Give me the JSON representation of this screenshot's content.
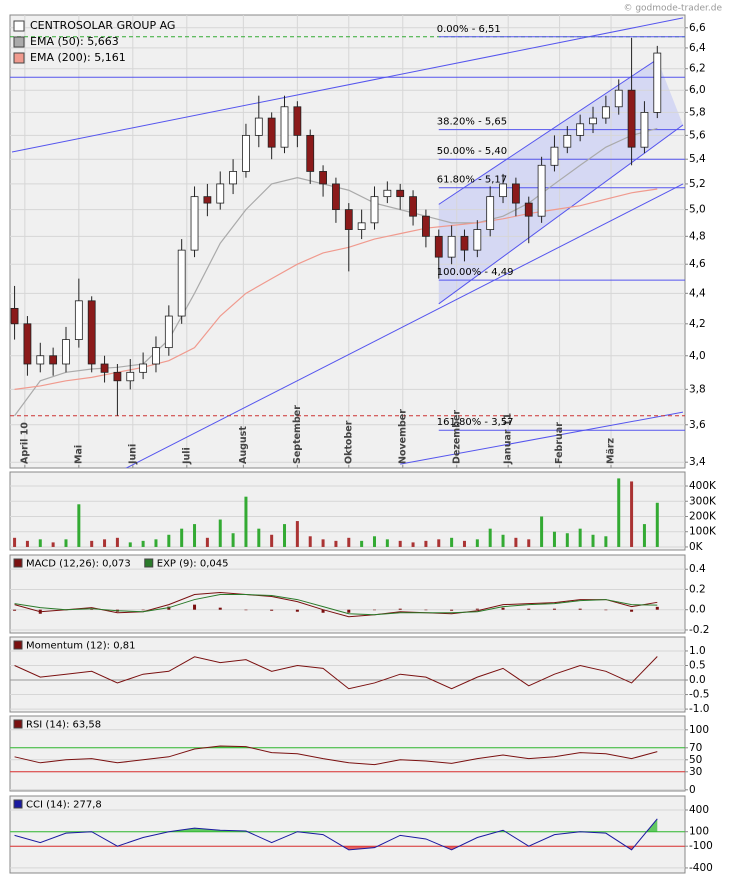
{
  "watermark": "© godmode-trader.de",
  "chart_data": [
    {
      "type": "candlestick",
      "title": "CENTROSOLAR GROUP AG",
      "title_color": "#ffffff",
      "log": true,
      "xlim": [
        -1,
        260
      ],
      "ylim": [
        3.37,
        6.73
      ],
      "yticks": [
        {
          "value": 6.6,
          "label": "6,6"
        },
        {
          "value": 6.4,
          "label": "6,4"
        },
        {
          "value": 6.2,
          "label": "6,2"
        },
        {
          "value": 6.0,
          "label": "6,0"
        },
        {
          "value": 5.8,
          "label": "5,8"
        },
        {
          "value": 5.6,
          "label": "5,6"
        },
        {
          "value": 5.4,
          "label": "5,4"
        },
        {
          "value": 5.2,
          "label": "5,2"
        },
        {
          "value": 5.0,
          "label": "5,0"
        },
        {
          "value": 4.8,
          "label": "4,8"
        },
        {
          "value": 4.6,
          "label": "4,6"
        },
        {
          "value": 4.4,
          "label": "4,4"
        },
        {
          "value": 4.2,
          "label": "4,2"
        },
        {
          "value": 4.0,
          "label": "4,0"
        },
        {
          "value": 3.8,
          "label": "3,8"
        },
        {
          "value": 3.6,
          "label": "3,6"
        },
        {
          "value": 3.4,
          "label": "3,4"
        }
      ],
      "xticks": [
        {
          "value": 4,
          "label": "April 10"
        },
        {
          "value": 25,
          "label": "Mai"
        },
        {
          "value": 46,
          "label": "Juni"
        },
        {
          "value": 67,
          "label": "Juli"
        },
        {
          "value": 89,
          "label": "August"
        },
        {
          "value": 110,
          "label": "September"
        },
        {
          "value": 130,
          "label": "Oktober"
        },
        {
          "value": 151,
          "label": "November"
        },
        {
          "value": 172,
          "label": "Dezember"
        },
        {
          "value": 192,
          "label": "Januar 11"
        },
        {
          "value": 212,
          "label": "Februar"
        },
        {
          "value": 232,
          "label": "März"
        }
      ],
      "x": [
        0,
        5,
        10,
        15,
        20,
        25,
        30,
        35,
        40,
        45,
        50,
        55,
        60,
        65,
        70,
        75,
        80,
        85,
        90,
        95,
        100,
        105,
        110,
        115,
        120,
        125,
        130,
        135,
        140,
        145,
        150,
        155,
        160,
        165,
        170,
        175,
        180,
        185,
        190,
        195,
        200,
        205,
        210,
        215,
        220,
        225,
        230,
        235,
        240,
        245,
        250
      ],
      "open": [
        4.3,
        4.2,
        3.95,
        4.0,
        3.95,
        4.1,
        4.35,
        3.95,
        3.9,
        3.85,
        3.9,
        3.95,
        4.05,
        4.25,
        4.7,
        5.1,
        5.05,
        5.2,
        5.3,
        5.6,
        5.75,
        5.5,
        5.85,
        5.6,
        5.3,
        5.2,
        5.0,
        4.85,
        4.9,
        5.1,
        5.15,
        5.1,
        4.95,
        4.8,
        4.65,
        4.8,
        4.7,
        4.85,
        5.1,
        5.2,
        5.05,
        4.95,
        5.35,
        5.5,
        5.6,
        5.7,
        5.75,
        5.85,
        6.0,
        5.5,
        5.8
      ],
      "high": [
        4.45,
        4.25,
        4.08,
        4.05,
        4.18,
        4.5,
        4.38,
        4.0,
        3.95,
        3.98,
        4.02,
        4.12,
        4.32,
        4.78,
        5.18,
        5.2,
        5.3,
        5.4,
        5.7,
        5.95,
        5.8,
        5.95,
        5.9,
        5.65,
        5.35,
        5.25,
        5.05,
        5.0,
        5.18,
        5.22,
        5.2,
        5.15,
        5.0,
        4.85,
        4.88,
        4.85,
        4.92,
        5.18,
        5.28,
        5.25,
        5.1,
        5.42,
        5.6,
        5.68,
        5.78,
        5.85,
        5.95,
        6.1,
        6.5,
        5.9,
        6.42
      ],
      "low": [
        4.1,
        3.88,
        3.9,
        3.88,
        3.9,
        4.05,
        3.9,
        3.84,
        3.65,
        3.8,
        3.86,
        3.9,
        4.0,
        4.2,
        4.65,
        4.95,
        5.0,
        5.12,
        5.25,
        5.5,
        5.4,
        5.45,
        5.5,
        5.2,
        5.1,
        4.9,
        4.55,
        4.78,
        4.85,
        5.05,
        5.0,
        4.88,
        4.72,
        4.5,
        4.6,
        4.62,
        4.65,
        4.8,
        5.05,
        4.95,
        4.75,
        4.9,
        5.3,
        5.45,
        5.55,
        5.62,
        5.7,
        5.78,
        5.35,
        5.45,
        5.75
      ],
      "close": [
        4.2,
        3.95,
        4.0,
        3.95,
        4.1,
        4.35,
        3.95,
        3.9,
        3.85,
        3.9,
        3.95,
        4.05,
        4.25,
        4.7,
        5.1,
        5.05,
        5.2,
        5.3,
        5.6,
        5.75,
        5.5,
        5.85,
        5.6,
        5.3,
        5.2,
        5.0,
        4.85,
        4.9,
        5.1,
        5.15,
        5.1,
        4.95,
        4.8,
        4.65,
        4.8,
        4.7,
        4.85,
        5.1,
        5.2,
        5.05,
        4.95,
        5.35,
        5.5,
        5.6,
        5.7,
        5.75,
        5.85,
        6.0,
        5.5,
        5.8,
        6.35
      ],
      "up_color": "#ffffff",
      "down_color": "#8b1a1a",
      "series": [
        {
          "name": "EMA (50): 5,663",
          "color": "#aaaaaa",
          "x": [
            0,
            10,
            20,
            30,
            40,
            50,
            60,
            70,
            80,
            90,
            100,
            110,
            120,
            130,
            140,
            150,
            160,
            170,
            180,
            190,
            200,
            210,
            220,
            230,
            240,
            250
          ],
          "values": [
            3.65,
            3.85,
            3.9,
            3.92,
            3.93,
            3.95,
            4.1,
            4.4,
            4.75,
            5.0,
            5.2,
            5.25,
            5.2,
            5.15,
            5.05,
            5.0,
            4.95,
            4.9,
            4.9,
            4.95,
            5.05,
            5.2,
            5.35,
            5.5,
            5.6,
            5.66
          ]
        },
        {
          "name": "EMA (200): 5,161",
          "color": "#f09a8e",
          "x": [
            0,
            10,
            20,
            30,
            40,
            50,
            60,
            70,
            80,
            90,
            100,
            110,
            120,
            130,
            140,
            150,
            160,
            170,
            180,
            190,
            200,
            210,
            220,
            230,
            240,
            250
          ],
          "values": [
            3.8,
            3.82,
            3.85,
            3.87,
            3.9,
            3.93,
            3.97,
            4.05,
            4.25,
            4.4,
            4.5,
            4.6,
            4.68,
            4.72,
            4.78,
            4.82,
            4.86,
            4.88,
            4.9,
            4.93,
            4.97,
            5.0,
            5.03,
            5.08,
            5.13,
            5.16
          ]
        }
      ],
      "hlines": [
        {
          "value": 6.51,
          "color": "#33aa33",
          "dashed": true
        },
        {
          "value": 3.65,
          "color": "#cc3333",
          "dashed": true
        },
        {
          "value": 6.12,
          "color": "#5555ee",
          "dashed": false
        }
      ],
      "trendlines": [
        [
          -1,
          5.46,
          260,
          6.7
        ],
        [
          42,
          3.36,
          260,
          5.2
        ],
        [
          150,
          3.39,
          260,
          3.67
        ],
        [
          165,
          5.04,
          250,
          6.29
        ],
        [
          165,
          4.33,
          260,
          5.69
        ]
      ],
      "channel": [
        165,
        5.04,
        250,
        6.29,
        260,
        5.69,
        165,
        4.33
      ],
      "trend_color": "#5555ee",
      "channel_color": "#c9cdf3",
      "fib_start": 165,
      "fib_levels": [
        {
          "value": 6.51,
          "label": "0.00% - 6,51"
        },
        {
          "value": 5.65,
          "label": "38.20% - 5,65"
        },
        {
          "value": 5.4,
          "label": "50.00% - 5,40"
        },
        {
          "value": 5.17,
          "label": "61.80% - 5,17"
        },
        {
          "value": 4.49,
          "label": "100.00% - 4,49"
        },
        {
          "value": 3.57,
          "label": "161.80% - 3,57"
        }
      ],
      "grid": true
    },
    {
      "type": "bar",
      "xlim": [
        -1,
        260
      ],
      "ylim": [
        -20000,
        492000
      ],
      "yticks": [
        {
          "value": 400000,
          "label": "400K"
        },
        {
          "value": 300000,
          "label": "300K"
        },
        {
          "value": 200000,
          "label": "200K"
        },
        {
          "value": 100000,
          "label": "100K"
        },
        {
          "value": 0,
          "label": "0K"
        }
      ],
      "x": [
        0,
        5,
        10,
        15,
        20,
        25,
        30,
        35,
        40,
        45,
        50,
        55,
        60,
        65,
        70,
        75,
        80,
        85,
        90,
        95,
        100,
        105,
        110,
        115,
        120,
        125,
        130,
        135,
        140,
        145,
        150,
        155,
        160,
        165,
        170,
        175,
        180,
        185,
        190,
        195,
        200,
        205,
        210,
        215,
        220,
        225,
        230,
        235,
        240,
        245,
        250
      ],
      "values": [
        60000,
        40000,
        50000,
        30000,
        50000,
        280000,
        40000,
        50000,
        60000,
        30000,
        40000,
        50000,
        80000,
        120000,
        150000,
        60000,
        180000,
        90000,
        330000,
        120000,
        80000,
        150000,
        170000,
        70000,
        50000,
        40000,
        60000,
        40000,
        70000,
        50000,
        40000,
        30000,
        40000,
        50000,
        60000,
        40000,
        50000,
        120000,
        80000,
        60000,
        50000,
        200000,
        100000,
        90000,
        120000,
        80000,
        70000,
        450000,
        430000,
        150000,
        290000
      ],
      "up_color": "#33aa33",
      "down_color": "#aa3333",
      "grid": true
    },
    {
      "type": "line",
      "xlim": [
        -1,
        260
      ],
      "ylim": [
        -0.23,
        0.54
      ],
      "yticks": [
        0.4,
        0.2,
        {
          "value": 0,
          "label": "0.0"
        },
        -0.2
      ],
      "x": [
        0,
        10,
        20,
        30,
        40,
        50,
        60,
        70,
        80,
        90,
        100,
        110,
        120,
        130,
        140,
        150,
        160,
        170,
        180,
        190,
        200,
        210,
        220,
        230,
        240,
        250
      ],
      "histogram": [
        -0.01,
        -0.04,
        0.0,
        0.01,
        -0.02,
        0.0,
        0.03,
        0.05,
        0.02,
        0.0,
        -0.01,
        -0.02,
        -0.03,
        -0.03,
        0.0,
        0.01,
        0.0,
        -0.01,
        0.01,
        0.02,
        0.01,
        0.01,
        0.01,
        0.0,
        -0.02,
        0.028
      ],
      "histogram_color": "#7a1010",
      "series": [
        {
          "name": "MACD (12,26): 0,073",
          "color": "#7a1010",
          "values": [
            0.05,
            -0.02,
            0.0,
            0.02,
            -0.03,
            -0.02,
            0.05,
            0.15,
            0.17,
            0.15,
            0.13,
            0.08,
            0.0,
            -0.07,
            -0.05,
            -0.02,
            -0.03,
            -0.04,
            -0.01,
            0.05,
            0.06,
            0.07,
            0.1,
            0.1,
            0.03,
            0.073
          ]
        },
        {
          "name": "EXP (9): 0,045",
          "color": "#2a7a2a",
          "values": [
            0.06,
            0.02,
            0.0,
            0.01,
            -0.01,
            -0.02,
            0.02,
            0.1,
            0.15,
            0.15,
            0.14,
            0.1,
            0.03,
            -0.04,
            -0.05,
            -0.03,
            -0.03,
            -0.03,
            -0.02,
            0.03,
            0.05,
            0.06,
            0.09,
            0.1,
            0.05,
            0.045
          ]
        }
      ],
      "grid": true
    },
    {
      "type": "line",
      "xlim": [
        -1,
        260
      ],
      "ylim": [
        -1.1,
        1.48
      ],
      "yticks": [
        {
          "value": 1,
          "label": "1.0"
        },
        0.5,
        {
          "value": 0,
          "label": "0.0"
        },
        -0.5,
        {
          "value": -1,
          "label": "-1.0"
        }
      ],
      "x": [
        0,
        10,
        20,
        30,
        40,
        50,
        60,
        70,
        80,
        90,
        100,
        110,
        120,
        130,
        140,
        150,
        160,
        170,
        180,
        190,
        200,
        210,
        220,
        230,
        240,
        250
      ],
      "levels": [
        {
          "value": 0,
          "color": "#999999"
        }
      ],
      "series": [
        {
          "name": "Momentum (12): 0,81",
          "color": "#7a1010",
          "values": [
            0.5,
            0.1,
            0.2,
            0.3,
            -0.1,
            0.2,
            0.3,
            0.8,
            0.6,
            0.7,
            0.3,
            0.5,
            0.4,
            -0.3,
            -0.1,
            0.2,
            0.1,
            -0.3,
            0.1,
            0.4,
            -0.2,
            0.2,
            0.5,
            0.3,
            -0.1,
            0.81
          ]
        }
      ],
      "grid": true
    },
    {
      "type": "line",
      "xlim": [
        -1,
        260
      ],
      "ylim": [
        -2,
        123
      ],
      "yticks": [
        100,
        70,
        50,
        30,
        0
      ],
      "x": [
        0,
        10,
        20,
        30,
        40,
        50,
        60,
        70,
        80,
        90,
        100,
        110,
        120,
        130,
        140,
        150,
        160,
        170,
        180,
        190,
        200,
        210,
        220,
        230,
        240,
        250
      ],
      "levels": [
        {
          "value": 70,
          "color": "#33bb33",
          "fill": "above"
        },
        {
          "value": 30,
          "color": "#dd3333",
          "fill": "below"
        }
      ],
      "series": [
        {
          "name": "RSI (14): 63,58",
          "color": "#7a1010",
          "values": [
            55,
            45,
            50,
            52,
            45,
            50,
            55,
            68,
            73,
            72,
            62,
            60,
            52,
            45,
            42,
            50,
            48,
            44,
            52,
            58,
            52,
            55,
            62,
            60,
            52,
            63.58
          ]
        }
      ],
      "grid": true
    },
    {
      "type": "line",
      "xlim": [
        -1,
        260
      ],
      "ylim": [
        -470,
        593
      ],
      "yticks": [
        400,
        100,
        -100,
        -400
      ],
      "x": [
        0,
        10,
        20,
        30,
        40,
        50,
        60,
        70,
        80,
        90,
        100,
        110,
        120,
        130,
        140,
        150,
        160,
        170,
        180,
        190,
        200,
        210,
        220,
        230,
        240,
        250
      ],
      "levels": [
        {
          "value": 100,
          "color": "#33bb33",
          "fill": "above"
        },
        {
          "value": -100,
          "color": "#dd3333",
          "fill": "below"
        }
      ],
      "series": [
        {
          "name": "CCI (14): 277,8",
          "color": "#1a1aa0",
          "values": [
            50,
            -50,
            80,
            100,
            -100,
            20,
            100,
            150,
            120,
            110,
            -50,
            100,
            60,
            -150,
            -120,
            50,
            0,
            -150,
            20,
            120,
            -100,
            60,
            100,
            80,
            -150,
            277.8
          ]
        }
      ],
      "grid": true
    }
  ]
}
